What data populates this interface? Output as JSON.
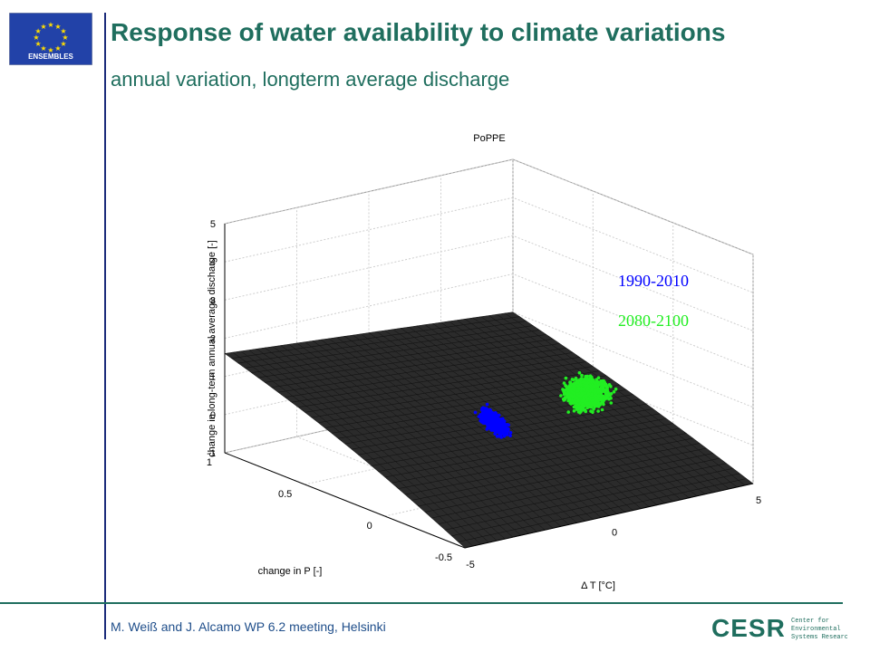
{
  "header": {
    "title": "Response of water availability to climate variations",
    "subtitle": "annual variation, longterm average discharge",
    "logo_text": "ENSEMBLES"
  },
  "footer": {
    "text": "M. Weiß and J. Alcamo WP 6.2 meeting, Helsinki",
    "cesr_logo": "CESR",
    "cesr_tagline": [
      "Center for",
      "Environmental",
      "Systems Research"
    ]
  },
  "colors": {
    "accent": "#1f6e5e",
    "rule": "#1a2a7a",
    "surface": "#2a2a2a",
    "blue": "#0000ff",
    "green": "#22ee22"
  },
  "chart_data": {
    "type": "scatter",
    "title": "PoPPE",
    "xlabel": "Δ T [°C]",
    "ylabel": "change in P [-]",
    "zlabel": "change in long-term annual average discharge [-]",
    "xlim": [
      -5,
      5
    ],
    "ylim": [
      -0.5,
      1
    ],
    "zlim": [
      -1,
      5
    ],
    "x_ticks": [
      "-5",
      "0",
      "5"
    ],
    "y_ticks": [
      "-0.5",
      "0",
      "0.5",
      "1"
    ],
    "z_ticks": [
      "-1",
      "0",
      "1",
      "2",
      "3",
      "4",
      "5"
    ],
    "surface": {
      "corners": [
        {
          "T": -5,
          "P": -0.5,
          "Q": -1
        },
        {
          "T": 5,
          "P": -0.5,
          "Q": -1
        },
        {
          "T": -5,
          "P": 1,
          "Q": 1.6
        },
        {
          "T": 5,
          "P": 1,
          "Q": 1
        }
      ]
    },
    "series": [
      {
        "name": "1990-2010",
        "color": "#0000ff",
        "T_range": [
          -0.8,
          0.6
        ],
        "P_range": [
          0.05,
          0.35
        ],
        "orientation": "elongated"
      },
      {
        "name": "2080-2100",
        "color": "#22ee22",
        "T_range": [
          2.0,
          5.0
        ],
        "P_range": [
          0.1,
          0.45
        ],
        "orientation": "spread"
      }
    ],
    "grid": true,
    "legend": "right"
  }
}
